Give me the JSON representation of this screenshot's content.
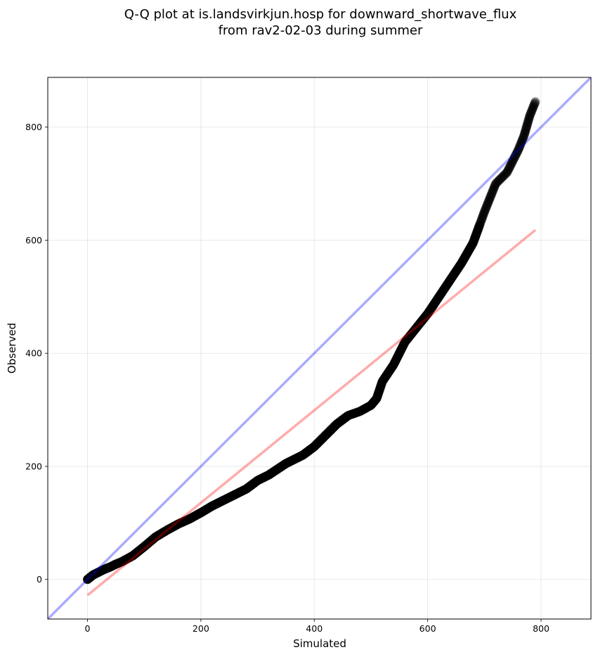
{
  "chart_data": {
    "type": "scatter",
    "title_lines": [
      "Q-Q plot at is.landsvirkjun.hosp for downward_shortwave_flux",
      "from rav2-02-03 during summer"
    ],
    "xlabel": "Simulated",
    "ylabel": "Observed",
    "xlim": [
      -70,
      888
    ],
    "ylim": [
      -70,
      888
    ],
    "xticks": [
      0,
      200,
      400,
      600,
      800
    ],
    "yticks": [
      0,
      200,
      400,
      600,
      800
    ],
    "grid": true,
    "colors": {
      "points": "#000000",
      "identity_line": "#0000ff",
      "fit_line": "#ff0000"
    },
    "identity_line": {
      "x": [
        -70,
        888
      ],
      "y": [
        -70,
        888
      ]
    },
    "fit_line": {
      "x": [
        0,
        790
      ],
      "y": [
        -28,
        618
      ]
    },
    "quantile_anchors": {
      "x": [
        0,
        10,
        20,
        30,
        40,
        50,
        60,
        80,
        100,
        120,
        140,
        160,
        180,
        200,
        220,
        250,
        280,
        300,
        320,
        350,
        380,
        400,
        420,
        440,
        460,
        480,
        500,
        510,
        520,
        540,
        560,
        580,
        600,
        620,
        640,
        660,
        680,
        700,
        720,
        740,
        760,
        770,
        780,
        790
      ],
      "y": [
        0,
        8,
        13,
        18,
        22,
        27,
        31,
        42,
        58,
        75,
        87,
        98,
        107,
        118,
        130,
        145,
        160,
        175,
        185,
        205,
        220,
        235,
        255,
        275,
        290,
        297,
        308,
        320,
        350,
        380,
        420,
        445,
        470,
        500,
        530,
        560,
        595,
        650,
        700,
        720,
        760,
        785,
        820,
        845
      ]
    }
  }
}
